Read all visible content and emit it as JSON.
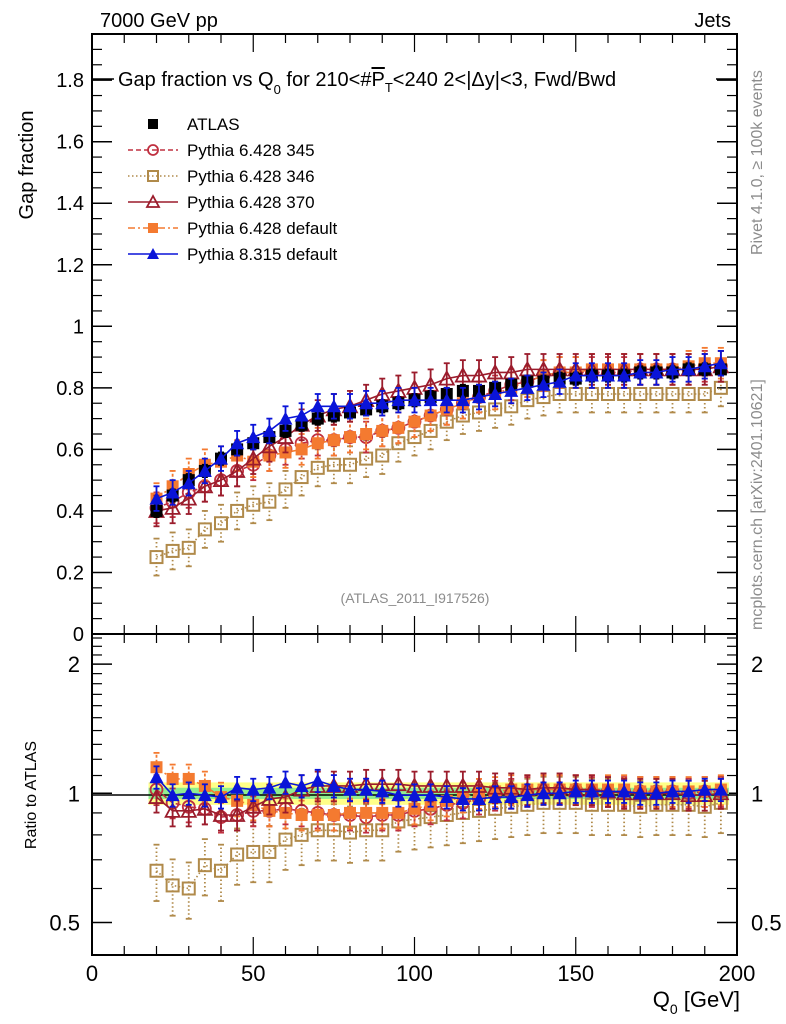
{
  "header": {
    "left": "7000 GeV pp",
    "right": "Jets"
  },
  "side_labels": {
    "rivet": "Rivet 4.1.0, ≥ 100k events",
    "mcplots": "mcplots.cern.ch [arXiv:2401.10621]"
  },
  "watermark": "(ATLAS_2011_I917526)",
  "chart_data": [
    {
      "type": "scatter",
      "panel": "main",
      "title": "Gap fraction vs Q₀ for 210<#P̅T<240  2<|Δy|<3, Fwd/Bwd",
      "title_parts": {
        "a": "Gap fraction vs Q",
        "sub": "0",
        "b": " for 210<#",
        "p": "P",
        "psub": "T",
        "c": "<240  2<|Δy|<3, Fwd/Bwd"
      },
      "xlabel": "Q0 [GeV]",
      "ylabel": "Gap fraction",
      "xlim": [
        0,
        200
      ],
      "ylim": [
        0,
        1.95
      ],
      "yticks": [
        "0",
        "0.2",
        "0.4",
        "0.6",
        "0.8",
        "1",
        "1.2",
        "1.4",
        "1.6",
        "1.8"
      ],
      "ytick_values": [
        0,
        0.2,
        0.4,
        0.6,
        0.8,
        1.0,
        1.2,
        1.4,
        1.6,
        1.8
      ],
      "legend_position": "top-left",
      "x": [
        20,
        25,
        30,
        35,
        40,
        45,
        50,
        55,
        60,
        65,
        70,
        75,
        80,
        85,
        90,
        95,
        100,
        105,
        110,
        115,
        120,
        125,
        130,
        135,
        140,
        145,
        150,
        155,
        160,
        165,
        170,
        175,
        180,
        185,
        190,
        195
      ],
      "series": [
        {
          "name": "ATLAS",
          "color": "#000000",
          "marker": "filled-square",
          "line": "none",
          "values": [
            0.4,
            0.45,
            0.5,
            0.53,
            0.57,
            0.6,
            0.62,
            0.64,
            0.66,
            0.68,
            0.7,
            0.71,
            0.72,
            0.73,
            0.74,
            0.75,
            0.76,
            0.77,
            0.78,
            0.79,
            0.79,
            0.8,
            0.81,
            0.82,
            0.82,
            0.83,
            0.83,
            0.84,
            0.84,
            0.84,
            0.85,
            0.85,
            0.85,
            0.86,
            0.86,
            0.86
          ],
          "err": 0.02
        },
        {
          "name": "Pythia 6.428 345",
          "color": "#c03040",
          "marker": "open-circle",
          "line": "dashed",
          "values": [
            0.41,
            0.43,
            0.46,
            0.48,
            0.5,
            0.53,
            0.55,
            0.58,
            0.6,
            0.62,
            0.63,
            0.63,
            0.64,
            0.64,
            0.66,
            0.67,
            0.69,
            0.71,
            0.73,
            0.75,
            0.77,
            0.79,
            0.81,
            0.82,
            0.84,
            0.85,
            0.85,
            0.85,
            0.85,
            0.85,
            0.86,
            0.86,
            0.86,
            0.86,
            0.87,
            0.87
          ],
          "err": 0.05
        },
        {
          "name": "Pythia 6.428 346",
          "color": "#b08a4a",
          "marker": "open-square",
          "line": "dotted",
          "values": [
            0.25,
            0.27,
            0.28,
            0.34,
            0.36,
            0.4,
            0.42,
            0.43,
            0.47,
            0.51,
            0.54,
            0.55,
            0.55,
            0.57,
            0.58,
            0.62,
            0.64,
            0.66,
            0.69,
            0.71,
            0.72,
            0.73,
            0.74,
            0.76,
            0.77,
            0.78,
            0.78,
            0.78,
            0.78,
            0.78,
            0.78,
            0.78,
            0.78,
            0.78,
            0.78,
            0.8
          ],
          "err": 0.06
        },
        {
          "name": "Pythia 6.428 370",
          "color": "#9b1c2c",
          "marker": "open-triangle",
          "line": "solid",
          "values": [
            0.4,
            0.41,
            0.44,
            0.48,
            0.5,
            0.53,
            0.57,
            0.61,
            0.64,
            0.68,
            0.71,
            0.73,
            0.74,
            0.76,
            0.78,
            0.79,
            0.8,
            0.81,
            0.83,
            0.84,
            0.84,
            0.85,
            0.85,
            0.86,
            0.86,
            0.86,
            0.86,
            0.86,
            0.86,
            0.86,
            0.86,
            0.86,
            0.86,
            0.86,
            0.86,
            0.87
          ],
          "err": 0.05
        },
        {
          "name": "Pythia 6.428 default",
          "color": "#f47a30",
          "marker": "filled-square",
          "line": "dashdot",
          "values": [
            0.44,
            0.48,
            0.52,
            0.55,
            0.56,
            0.58,
            0.56,
            0.58,
            0.59,
            0.6,
            0.62,
            0.63,
            0.64,
            0.65,
            0.66,
            0.67,
            0.69,
            0.71,
            0.73,
            0.75,
            0.77,
            0.78,
            0.8,
            0.82,
            0.84,
            0.85,
            0.85,
            0.86,
            0.86,
            0.86,
            0.86,
            0.86,
            0.86,
            0.87,
            0.88,
            0.88
          ],
          "err": 0.05
        },
        {
          "name": "Pythia 8.315 default",
          "color": "#0a14d8",
          "marker": "filled-triangle",
          "line": "solid",
          "values": [
            0.44,
            0.46,
            0.49,
            0.53,
            0.57,
            0.62,
            0.64,
            0.66,
            0.7,
            0.71,
            0.74,
            0.74,
            0.74,
            0.75,
            0.75,
            0.76,
            0.76,
            0.76,
            0.76,
            0.76,
            0.77,
            0.78,
            0.79,
            0.8,
            0.81,
            0.82,
            0.84,
            0.84,
            0.84,
            0.84,
            0.85,
            0.85,
            0.86,
            0.86,
            0.87,
            0.88
          ],
          "err": 0.04
        }
      ]
    },
    {
      "type": "scatter",
      "panel": "ratio",
      "ylabel": "Ratio to ATLAS",
      "xlabel": "Q0 [GeV]",
      "xlim": [
        0,
        200
      ],
      "ylim": [
        0.42,
        2.35
      ],
      "yscale": "log",
      "yticks": [
        "0.5",
        "1",
        "2"
      ],
      "ytick_values": [
        0.5,
        1,
        2
      ],
      "xticks": [
        "0",
        "50",
        "100",
        "150",
        "200"
      ],
      "xtick_values": [
        0,
        50,
        100,
        150,
        200
      ],
      "x": [
        20,
        25,
        30,
        35,
        40,
        45,
        50,
        55,
        60,
        65,
        70,
        75,
        80,
        85,
        90,
        95,
        100,
        105,
        110,
        115,
        120,
        125,
        130,
        135,
        140,
        145,
        150,
        155,
        160,
        165,
        170,
        175,
        180,
        185,
        190,
        195
      ],
      "band": {
        "inner_color": "#90ee90",
        "outer_color": "#ffff88",
        "inner": 0.03,
        "outer": 0.06
      },
      "series": [
        {
          "name": "Pythia 6.428 345",
          "values": [
            1.02,
            0.95,
            0.93,
            0.92,
            0.88,
            0.89,
            0.91,
            0.91,
            0.92,
            0.91,
            0.9,
            0.89,
            0.89,
            0.88,
            0.89,
            0.89,
            0.91,
            0.92,
            0.94,
            0.95,
            0.97,
            0.99,
            1.0,
            1.01,
            1.02,
            1.02,
            1.02,
            1.01,
            1.01,
            1.01,
            1.01,
            1.01,
            1.01,
            1.0,
            1.01,
            1.01
          ],
          "err": 0.08
        },
        {
          "name": "Pythia 6.428 346",
          "values": [
            0.66,
            0.61,
            0.6,
            0.68,
            0.66,
            0.72,
            0.73,
            0.73,
            0.78,
            0.8,
            0.82,
            0.82,
            0.81,
            0.82,
            0.82,
            0.86,
            0.87,
            0.88,
            0.89,
            0.9,
            0.91,
            0.92,
            0.93,
            0.94,
            0.95,
            0.95,
            0.95,
            0.94,
            0.94,
            0.94,
            0.93,
            0.94,
            0.94,
            0.94,
            0.93,
            0.95
          ],
          "err": 0.15
        },
        {
          "name": "Pythia 6.428 370",
          "values": [
            0.98,
            0.91,
            0.91,
            0.92,
            0.89,
            0.89,
            0.93,
            0.97,
            0.98,
            1.02,
            1.04,
            1.04,
            1.04,
            1.05,
            1.05,
            1.05,
            1.04,
            1.04,
            1.04,
            1.04,
            1.04,
            1.03,
            1.03,
            1.02,
            1.03,
            1.03,
            1.02,
            1.02,
            1.01,
            1.0,
            1.0,
            1.0,
            1.0,
            0.99,
            0.99,
            1.0
          ],
          "err": 0.08
        },
        {
          "name": "Pythia 6.428 default",
          "values": [
            1.15,
            1.08,
            1.08,
            1.04,
            0.98,
            0.96,
            0.94,
            0.91,
            0.9,
            0.89,
            0.89,
            0.89,
            0.9,
            0.9,
            0.9,
            0.9,
            0.92,
            0.94,
            0.96,
            0.98,
            1.0,
            1.01,
            1.02,
            1.02,
            1.02,
            1.02,
            1.02,
            1.02,
            1.02,
            1.02,
            1.01,
            1.01,
            1.01,
            1.01,
            1.01,
            1.02
          ],
          "err": 0.08
        },
        {
          "name": "Pythia 8.315 default",
          "values": [
            1.09,
            0.99,
            1.0,
            0.99,
            0.98,
            1.03,
            1.02,
            1.03,
            1.06,
            1.04,
            1.07,
            1.04,
            1.02,
            1.02,
            1.01,
            0.99,
            0.99,
            0.99,
            0.98,
            0.97,
            0.97,
            0.98,
            0.98,
            0.99,
            1.0,
            1.0,
            1.01,
            1.01,
            1.01,
            1.01,
            1.0,
            1.0,
            1.01,
            1.01,
            1.02,
            1.02
          ],
          "err": 0.06
        }
      ]
    }
  ]
}
